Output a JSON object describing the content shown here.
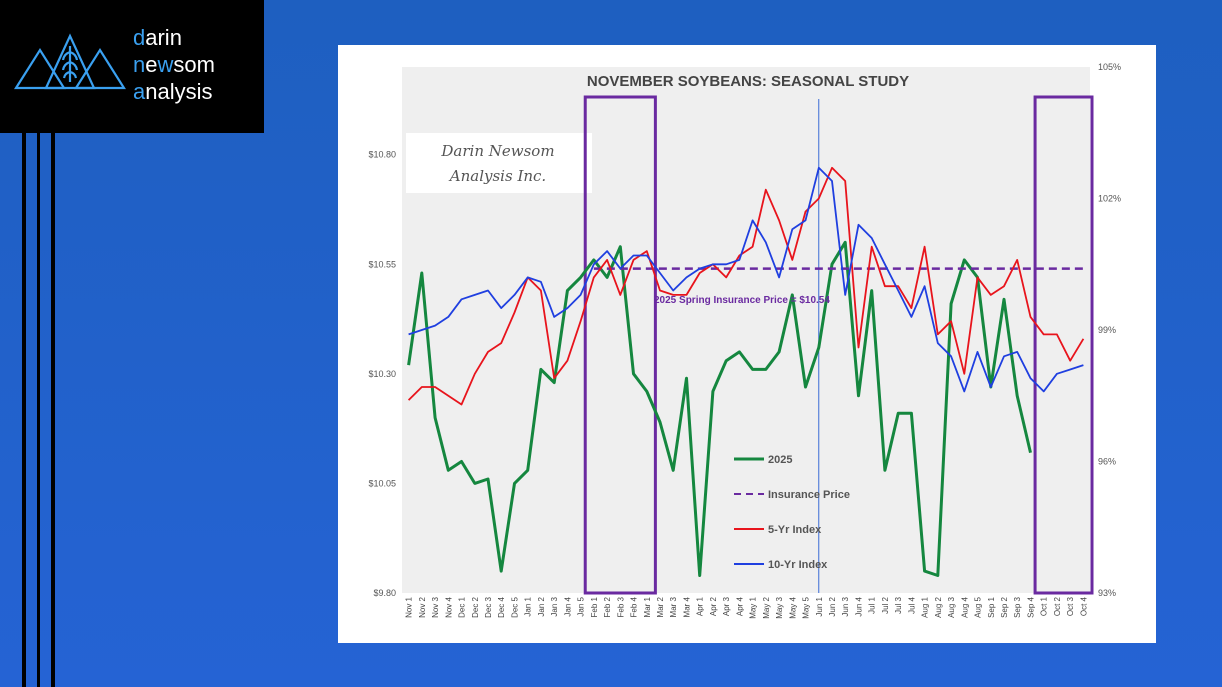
{
  "brand": {
    "name_lines": [
      {
        "accent": "d",
        "rest": "arin"
      },
      {
        "accent": "n",
        "middle": "e",
        "accent2": "w",
        "rest": "som"
      },
      {
        "accent": "a",
        "rest": "nalysis"
      }
    ],
    "colors": {
      "accent": "#3aa0f0",
      "text": "#ffffff",
      "logo_bg": "#000000"
    },
    "icon": "mountain-wheat-logo"
  },
  "chart_data": {
    "type": "line",
    "title": "NOVEMBER SOYBEANS: SEASONAL STUDY",
    "watermark": [
      "Darin Newsom",
      "Analysis Inc."
    ],
    "annotation": "2025 Spring Insurance Price = $10.54",
    "x": [
      "Nov 1",
      "Nov 2",
      "Nov 3",
      "Nov 4",
      "Dec 1",
      "Dec 2",
      "Dec 3",
      "Dec 4",
      "Dec 5",
      "Jan 1",
      "Jan 2",
      "Jan 3",
      "Jan 4",
      "Jan 5",
      "Feb 1",
      "Feb 2",
      "Feb 3",
      "Feb 4",
      "Mar 1",
      "Mar 2",
      "Mar 3",
      "Mar 4",
      "Apr 1",
      "Apr 2",
      "Apr 3",
      "Apr 4",
      "May 1",
      "May 2",
      "May 3",
      "May 4",
      "May 5",
      "Jun 1",
      "Jun 2",
      "Jun 3",
      "Jun 4",
      "Jul 1",
      "Jul 2",
      "Jul 3",
      "Jul 4",
      "Aug 1",
      "Aug 2",
      "Aug 3",
      "Aug 4",
      "Aug 5",
      "Sep 1",
      "Sep 2",
      "Sep 3",
      "Sep 4",
      "Oct 1",
      "Oct 2",
      "Oct 3",
      "Oct 4"
    ],
    "y_left": {
      "ticks": [
        "$9.80",
        "$10.05",
        "$10.30",
        "$10.55",
        "$10.80"
      ],
      "range": [
        9.8,
        11.0
      ]
    },
    "y_right": {
      "ticks": [
        "93%",
        "96%",
        "99%",
        "102%",
        "105%"
      ],
      "range": [
        93,
        105
      ]
    },
    "series": [
      {
        "name": "2025",
        "axis": "left",
        "color": "#15873f",
        "dash": false,
        "values": [
          10.32,
          10.53,
          10.2,
          10.08,
          10.1,
          10.05,
          10.06,
          9.85,
          10.05,
          10.08,
          10.31,
          10.28,
          10.49,
          10.52,
          10.56,
          10.52,
          10.59,
          10.3,
          10.26,
          10.19,
          10.08,
          10.29,
          9.84,
          10.26,
          10.33,
          10.35,
          10.31,
          10.31,
          10.35,
          10.48,
          10.27,
          10.36,
          10.55,
          10.6,
          10.25,
          10.49,
          10.08,
          10.21,
          10.21,
          9.85,
          9.84,
          10.46,
          10.56,
          10.52,
          10.27,
          10.47,
          10.25,
          10.12,
          null,
          null,
          null,
          null
        ]
      },
      {
        "name": "Insurance Price",
        "axis": "left",
        "color": "#6a2aa0",
        "dash": true,
        "constant": 10.54,
        "from": "Feb 1",
        "to": "Oct 4"
      },
      {
        "name": "5-Yr Index",
        "axis": "right",
        "color": "#e8141c",
        "dash": false,
        "values": [
          97.4,
          97.7,
          97.7,
          97.5,
          97.3,
          98.0,
          98.5,
          98.7,
          99.4,
          100.2,
          99.9,
          97.9,
          98.3,
          99.2,
          100.2,
          100.6,
          99.8,
          100.6,
          100.8,
          99.9,
          99.8,
          99.8,
          100.3,
          100.5,
          100.2,
          100.7,
          100.9,
          102.2,
          101.5,
          100.6,
          101.7,
          102.0,
          102.7,
          102.4,
          98.6,
          100.9,
          100.0,
          100.0,
          99.5,
          100.9,
          98.9,
          99.2,
          98.0,
          100.2,
          99.8,
          100.0,
          100.6,
          99.3,
          98.9,
          98.9,
          98.3,
          98.8
        ]
      },
      {
        "name": "10-Yr Index",
        "axis": "right",
        "color": "#1f3fe0",
        "dash": false,
        "values": [
          98.9,
          99.0,
          99.1,
          99.3,
          99.7,
          99.8,
          99.9,
          99.5,
          99.8,
          100.2,
          100.1,
          99.3,
          99.5,
          99.8,
          100.5,
          100.8,
          100.4,
          100.7,
          100.7,
          100.3,
          99.9,
          100.2,
          100.4,
          100.5,
          100.5,
          100.6,
          101.5,
          101.0,
          100.2,
          101.3,
          101.5,
          102.7,
          102.4,
          99.8,
          101.4,
          101.1,
          100.5,
          99.9,
          99.3,
          100.0,
          98.7,
          98.4,
          97.6,
          98.5,
          97.7,
          98.4,
          98.5,
          97.9,
          97.6,
          98.0,
          98.1,
          98.2
        ]
      }
    ],
    "highlight_boxes": [
      {
        "from": "Feb 1",
        "to": "Mar 1"
      },
      {
        "from": "Oct 1",
        "to": "Oct 4"
      }
    ],
    "marker_line": "Jun 1",
    "legend_placement": "center-bottom",
    "grid": false
  }
}
